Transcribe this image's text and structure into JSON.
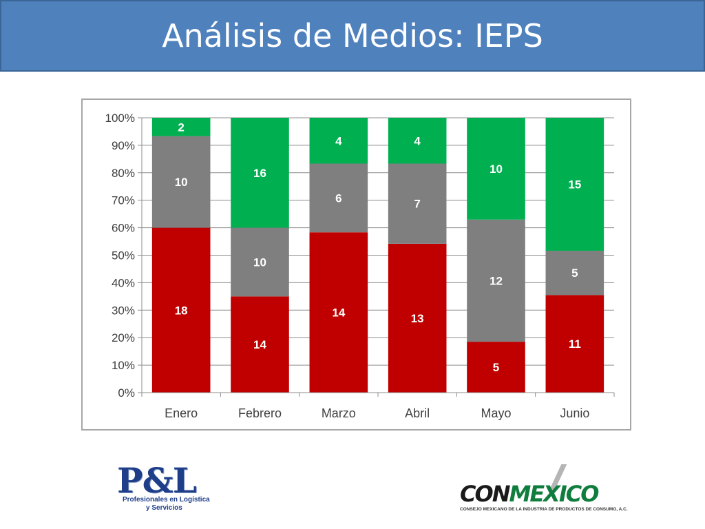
{
  "header": {
    "title": "Análisis de Medios: IEPS"
  },
  "colors": {
    "red": "#c00000",
    "gray": "#7f7f7f",
    "green": "#00b050",
    "title_bar": "#4f81bd"
  },
  "chart_data": {
    "type": "bar",
    "stacked": "percent",
    "title": "",
    "xlabel": "",
    "ylabel": "",
    "ylim": [
      0,
      100
    ],
    "y_ticks": [
      "0%",
      "10%",
      "20%",
      "30%",
      "40%",
      "50%",
      "60%",
      "70%",
      "80%",
      "90%",
      "100%"
    ],
    "categories": [
      "Enero",
      "Febrero",
      "Marzo",
      "Abril",
      "Mayo",
      "Junio"
    ],
    "series": [
      {
        "color": "#c00000",
        "values": [
          18,
          14,
          14,
          13,
          5,
          11
        ]
      },
      {
        "color": "#7f7f7f",
        "values": [
          10,
          10,
          6,
          7,
          12,
          5
        ]
      },
      {
        "color": "#00b050",
        "values": [
          2,
          16,
          4,
          4,
          10,
          15
        ]
      }
    ],
    "grid": true,
    "legend": "none"
  },
  "logos": {
    "pl": {
      "letters": "P&L",
      "line1": "Profesionales en Logística",
      "line2": "y Servicios"
    },
    "conmexico": {
      "con": "CON",
      "mexico": "MEXICO",
      "subtitle": "CONSEJO MEXICANO DE LA INDUSTRIA DE PRODUCTOS DE CONSUMO, A.C."
    }
  }
}
